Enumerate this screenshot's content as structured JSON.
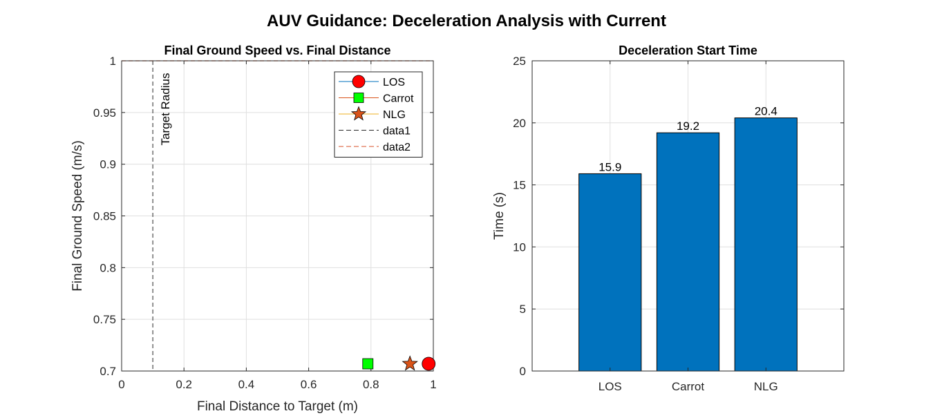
{
  "figure": {
    "title": "AUV Guidance: Deceleration Analysis with Current"
  },
  "chart_data": [
    {
      "type": "scatter",
      "title": "Final Ground Speed vs. Final Distance",
      "xlabel": "Final Distance to Target (m)",
      "ylabel": "Final Ground Speed (m/s)",
      "xlim": [
        0,
        1
      ],
      "ylim": [
        0.7,
        1
      ],
      "xticks": [
        0,
        0.2,
        0.4,
        0.6,
        0.8,
        1
      ],
      "xtick_labels": [
        "0",
        "0.2",
        "0.4",
        "0.6",
        "0.8",
        "1"
      ],
      "yticks": [
        0.7,
        0.75,
        0.8,
        0.85,
        0.9,
        0.95,
        1
      ],
      "ytick_labels": [
        "0.7",
        "0.75",
        "0.8",
        "0.85",
        "0.9",
        "0.95",
        "1"
      ],
      "grid": true,
      "legend_position": "top-right",
      "series": [
        {
          "name": "LOS",
          "marker": "circle",
          "face_color": "#ff0000",
          "line_color": "#0072bd",
          "x": [
            0.985
          ],
          "y": [
            0.707
          ]
        },
        {
          "name": "Carrot",
          "marker": "square",
          "face_color": "#00ff00",
          "line_color": "#d95319",
          "x": [
            0.79
          ],
          "y": [
            0.707
          ]
        },
        {
          "name": "NLG",
          "marker": "star",
          "face_color": "#d95319",
          "line_color": "#edb120",
          "x": [
            0.925
          ],
          "y": [
            0.707
          ]
        }
      ],
      "reference_lines": [
        {
          "name": "data1",
          "orientation": "vertical",
          "value": 0.1,
          "color": "#262626",
          "style": "dashed",
          "label": "Target Radius"
        },
        {
          "name": "data2",
          "orientation": "horizontal",
          "value": 1,
          "color": "#d9532b",
          "style": "dashed"
        }
      ]
    },
    {
      "type": "bar",
      "title": "Deceleration Start Time",
      "xlabel": "",
      "ylabel": "Time (s)",
      "categories": [
        "LOS",
        "Carrot",
        "NLG"
      ],
      "values": [
        15.9,
        19.2,
        20.4
      ],
      "value_labels": [
        "15.9",
        "19.2",
        "20.4"
      ],
      "ylim": [
        0,
        25
      ],
      "yticks": [
        0,
        5,
        10,
        15,
        20,
        25
      ],
      "ytick_labels": [
        "0",
        "5",
        "10",
        "15",
        "20",
        "25"
      ],
      "bar_color": "#0072bd",
      "grid": true
    }
  ]
}
